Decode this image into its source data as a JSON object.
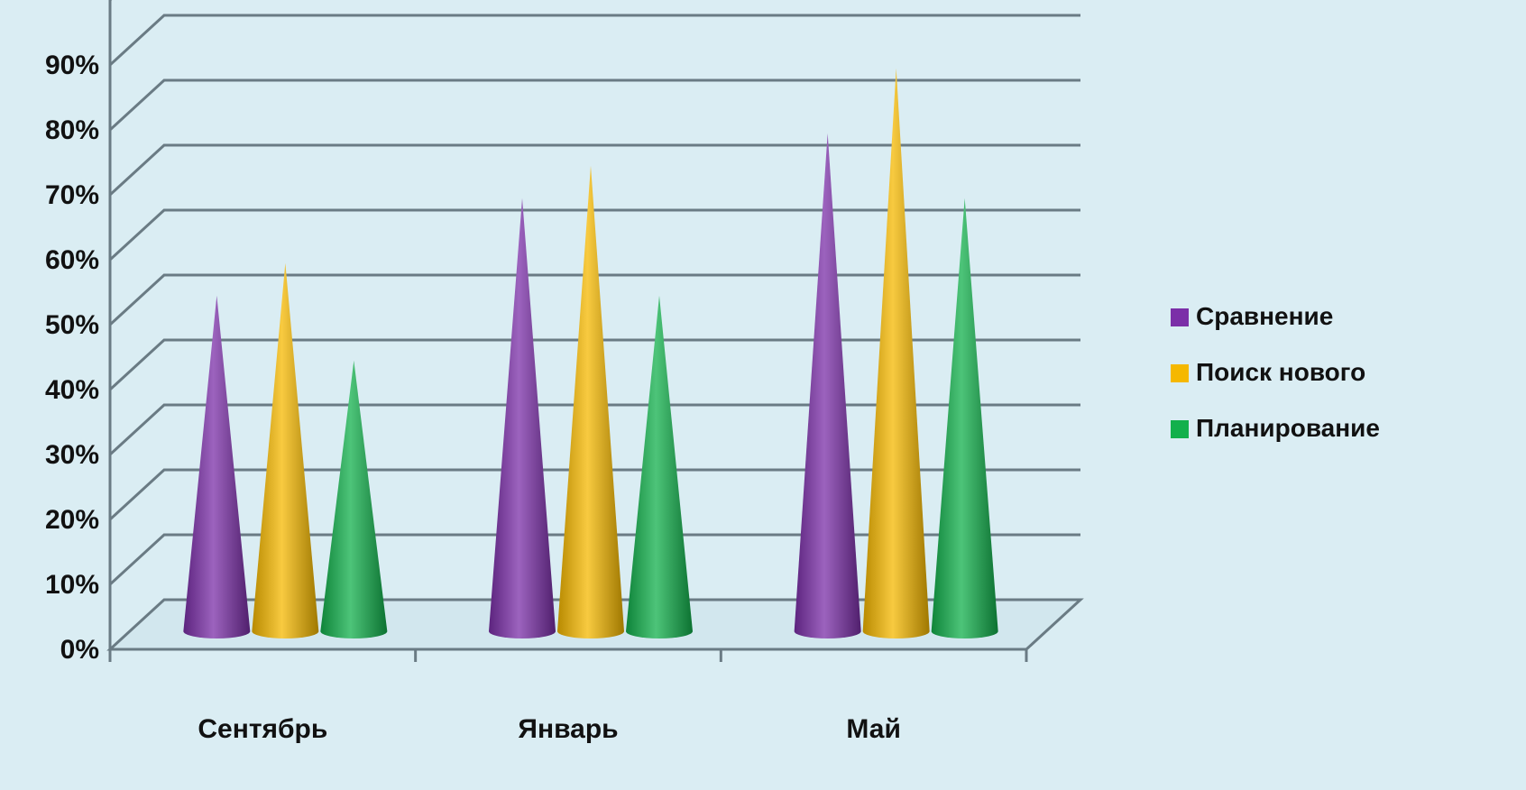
{
  "chart_data": {
    "type": "bar",
    "style": "3d-cone",
    "categories": [
      "Сентябрь",
      "Январь",
      "Май"
    ],
    "series": [
      {
        "name": "Сравнение",
        "color": "#7b2fa8",
        "values": [
          50,
          65,
          75
        ]
      },
      {
        "name": "Поиск нового",
        "color": "#f5b800",
        "values": [
          55,
          70,
          85
        ]
      },
      {
        "name": "Планирование",
        "color": "#12b04c",
        "values": [
          40,
          50,
          65
        ]
      }
    ],
    "ylim": [
      0,
      90
    ],
    "yticks": [
      "0%",
      "10%",
      "20%",
      "30%",
      "40%",
      "50%",
      "60%",
      "70%",
      "80%",
      "90%"
    ],
    "grid": true,
    "legend": "right",
    "xlabel": "",
    "ylabel": ""
  }
}
